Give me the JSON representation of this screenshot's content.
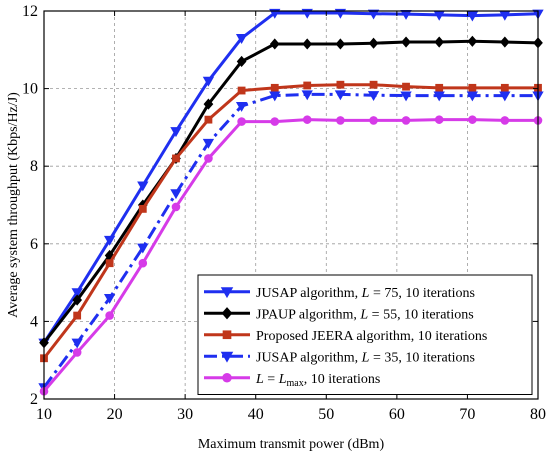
{
  "chart_data": {
    "type": "line",
    "xlabel": "Maximum transmit power (dBm)",
    "ylabel": "Average system throughput (Kbps/Hz/J)",
    "xlim": [
      10,
      80
    ],
    "ylim": [
      2,
      12
    ],
    "xticks": [
      10,
      20,
      30,
      40,
      50,
      60,
      70,
      80
    ],
    "yticks": [
      2,
      4,
      6,
      8,
      10,
      12
    ],
    "grid": true,
    "legend_position": "bottom-right",
    "series": [
      {
        "name_parts": [
          "JUSAP algorithm, ",
          "L",
          " = 75, 10 iterations"
        ],
        "color": "#1f2ff0",
        "marker": "triangle-down",
        "dash": "solid",
        "x": [
          10,
          14.7,
          19.3,
          24,
          28.7,
          33.3,
          38,
          42.7,
          47.3,
          52,
          56.7,
          61.3,
          66,
          70.7,
          75.3,
          80
        ],
        "y": [
          3.45,
          4.75,
          6.1,
          7.5,
          8.9,
          10.2,
          11.3,
          11.95,
          11.95,
          11.95,
          11.93,
          11.92,
          11.9,
          11.88,
          11.9,
          11.93
        ]
      },
      {
        "name_parts": [
          "JPAUP algorithm, ",
          "L",
          " = 55, 10 iterations"
        ],
        "color": "#000000",
        "marker": "diamond",
        "dash": "solid",
        "x": [
          10,
          14.7,
          19.3,
          24,
          28.7,
          33.3,
          38,
          42.7,
          47.3,
          52,
          56.7,
          61.3,
          66,
          70.7,
          75.3,
          80
        ],
        "y": [
          3.45,
          4.55,
          5.7,
          7.0,
          8.2,
          9.6,
          10.7,
          11.15,
          11.15,
          11.15,
          11.17,
          11.2,
          11.2,
          11.22,
          11.2,
          11.18
        ]
      },
      {
        "name_parts": [
          "Proposed JEERA algorithm, 10 iterations"
        ],
        "color": "#c0361b",
        "marker": "square",
        "dash": "solid",
        "x": [
          10,
          14.7,
          19.3,
          24,
          28.7,
          33.3,
          38,
          42.7,
          47.3,
          52,
          56.7,
          61.3,
          66,
          70.7,
          75.3,
          80
        ],
        "y": [
          3.05,
          4.15,
          5.5,
          6.9,
          8.2,
          9.2,
          9.95,
          10.02,
          10.08,
          10.1,
          10.1,
          10.05,
          10.02,
          10.02,
          10.02,
          10.02
        ]
      },
      {
        "name_parts": [
          "JUSAP algorithm, ",
          "L",
          " = 35, 10 iterations"
        ],
        "color": "#1f2ff0",
        "marker": "triangle-down",
        "dash": "dashdot",
        "x": [
          10,
          14.7,
          19.3,
          24,
          28.7,
          33.3,
          38,
          42.7,
          47.3,
          52,
          56.7,
          61.3,
          66,
          70.7,
          75.3,
          80
        ],
        "y": [
          2.3,
          3.45,
          4.6,
          5.9,
          7.3,
          8.6,
          9.55,
          9.82,
          9.85,
          9.85,
          9.83,
          9.82,
          9.82,
          9.82,
          9.82,
          9.82
        ]
      },
      {
        "name_parts": [
          "L",
          " = ",
          "L",
          "max",
          ", 10 iterations"
        ],
        "color": "#d63be8",
        "marker": "circle",
        "dash": "solid",
        "x": [
          10,
          14.7,
          19.3,
          24,
          28.7,
          33.3,
          38,
          42.7,
          47.3,
          52,
          56.7,
          61.3,
          66,
          70.7,
          75.3,
          80
        ],
        "y": [
          2.2,
          3.2,
          4.15,
          5.5,
          6.95,
          8.2,
          9.15,
          9.15,
          9.2,
          9.18,
          9.18,
          9.18,
          9.2,
          9.2,
          9.18,
          9.18
        ]
      }
    ]
  }
}
